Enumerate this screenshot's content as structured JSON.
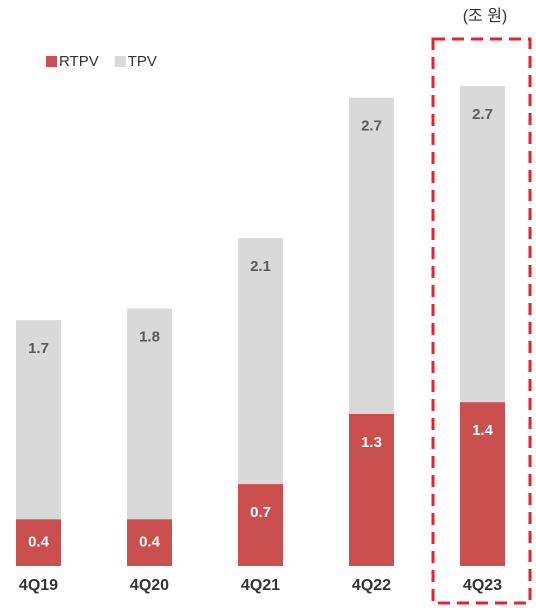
{
  "chart_data": {
    "type": "stacked-bar",
    "unit_label": "(조 원)",
    "categories": [
      "4Q19",
      "4Q20",
      "4Q21",
      "4Q22",
      "4Q23"
    ],
    "series": [
      {
        "name": "RTPV",
        "color": "#c9504f",
        "values": [
          0.4,
          0.4,
          0.7,
          1.3,
          1.4
        ]
      },
      {
        "name": "TPV",
        "color": "#d9d9d9",
        "values": [
          1.7,
          1.8,
          2.1,
          2.7,
          2.7
        ]
      }
    ],
    "legend": "top-left"
  }
}
